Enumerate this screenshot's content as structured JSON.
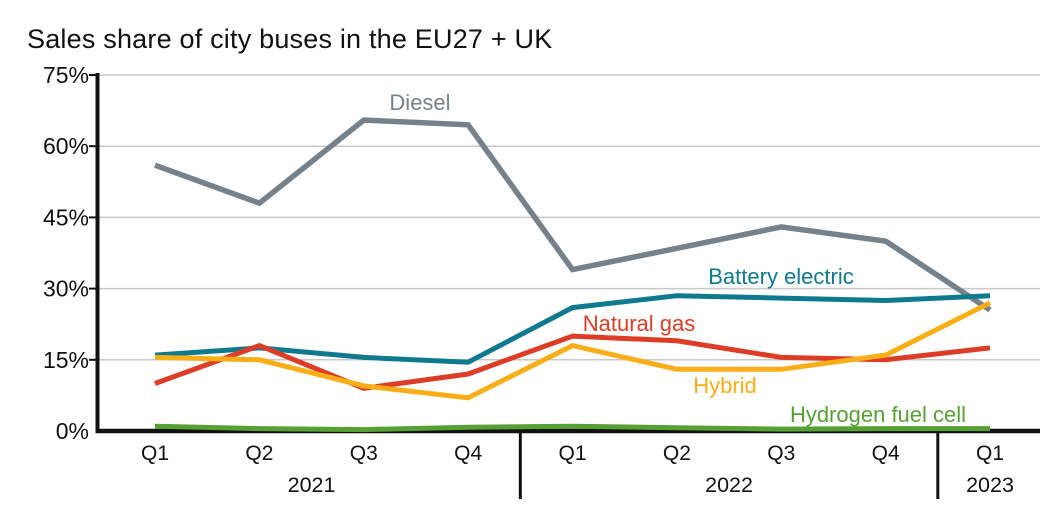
{
  "chart_data": {
    "type": "line",
    "title": "Sales share of city buses in the EU27 + UK",
    "unit": "%",
    "grid": true,
    "legend": "inline-labels",
    "ylim": [
      0,
      75
    ],
    "y_ticks": [
      0,
      15,
      30,
      45,
      60,
      75
    ],
    "y_tick_labels": [
      "0%",
      "15%",
      "30%",
      "45%",
      "60%",
      "75%"
    ],
    "x_tick_labels": [
      "Q1",
      "Q2",
      "Q3",
      "Q4",
      "Q1",
      "Q2",
      "Q3",
      "Q4",
      "Q1"
    ],
    "categories": [
      "Q1 2021",
      "Q2 2021",
      "Q3 2021",
      "Q4 2021",
      "Q1 2022",
      "Q2 2022",
      "Q3 2022",
      "Q4 2022",
      "Q1 2023"
    ],
    "year_groups": [
      {
        "label": "2021",
        "quarters": 4
      },
      {
        "label": "2022",
        "quarters": 4
      },
      {
        "label": "2023",
        "quarters": 1
      }
    ],
    "series": [
      {
        "name": "Diesel",
        "color": "#76828b",
        "values": [
          56,
          48,
          65.5,
          64.5,
          34,
          38.5,
          43,
          40,
          25.5
        ]
      },
      {
        "name": "Battery electric",
        "color": "#0f7a8e",
        "values": [
          16,
          17.5,
          15.5,
          14.5,
          26,
          28.5,
          28,
          27.5,
          28.5
        ]
      },
      {
        "name": "Natural gas",
        "color": "#dd3d26",
        "values": [
          10,
          18,
          9,
          12,
          20,
          19,
          15.5,
          15,
          17.5
        ]
      },
      {
        "name": "Hybrid",
        "color": "#f9ae17",
        "values": [
          15.5,
          15,
          9.5,
          7,
          18,
          13,
          13,
          16,
          27
        ]
      },
      {
        "name": "Hydrogen fuel cell",
        "color": "#57a033",
        "values": [
          1,
          0.5,
          0.3,
          0.8,
          1,
          0.7,
          0.4,
          0.5,
          0.5
        ]
      }
    ],
    "axis_color": "#111111",
    "gridline_color": "#c9c9c9"
  }
}
